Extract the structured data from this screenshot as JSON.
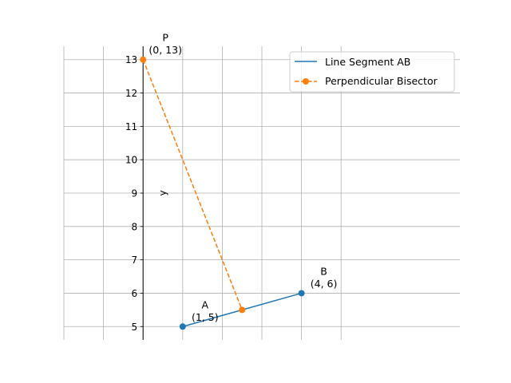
{
  "chart_data": {
    "type": "line",
    "title": "",
    "xlabel": "",
    "ylabel": "y",
    "xlim": [
      -2,
      8
    ],
    "ylim": [
      4.6,
      13.4
    ],
    "xticks": [
      -2,
      -1,
      0,
      1,
      2,
      3,
      4,
      5
    ],
    "yticks": [
      5,
      6,
      7,
      8,
      9,
      10,
      11,
      12,
      13
    ],
    "x_tick_labels_visible": false,
    "grid": true,
    "spine": "y-axis at x = 0",
    "legend_position": "top-right",
    "series": [
      {
        "name": "Line Segment AB",
        "style": "solid",
        "color": "#1f77b4",
        "points": [
          [
            1,
            5
          ],
          [
            4,
            6
          ]
        ]
      },
      {
        "name": "Perpendicular Bisector",
        "style": "dashed",
        "color": "#ff7f0e",
        "points": [
          [
            0,
            13
          ],
          [
            2.5,
            5.5
          ]
        ]
      }
    ],
    "annotations": [
      {
        "name": "A",
        "coords": "(1, 5)",
        "x": 1,
        "y": 5
      },
      {
        "name": "B",
        "coords": "(4, 6)",
        "x": 4,
        "y": 6
      },
      {
        "name": "P",
        "coords": "(0, 13)",
        "x": 0,
        "y": 13
      }
    ]
  }
}
